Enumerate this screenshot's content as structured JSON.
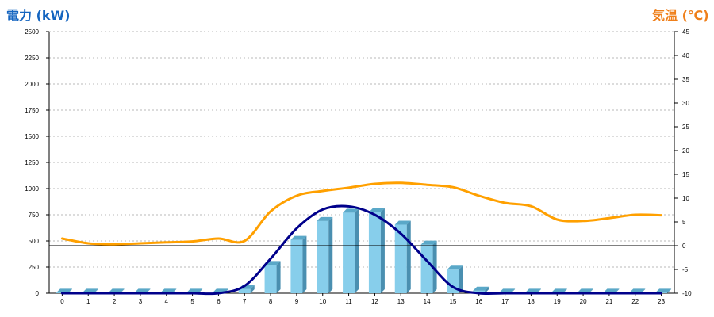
{
  "chart_data": {
    "type": "bar",
    "title": "",
    "left_axis": {
      "label": "電力 (kW)",
      "min": 0,
      "max": 2500,
      "ticks": [
        0,
        250,
        500,
        750,
        1000,
        1250,
        1500,
        1750,
        2000,
        2250,
        2500
      ]
    },
    "right_axis": {
      "label": "気温 (℃)",
      "min": -10,
      "max": 45,
      "ticks": [
        -10,
        -5,
        0,
        5,
        10,
        15,
        20,
        25,
        30,
        35,
        40,
        45
      ]
    },
    "categories": [
      "0",
      "1",
      "2",
      "3",
      "4",
      "5",
      "6",
      "7",
      "8",
      "9",
      "10",
      "11",
      "12",
      "13",
      "14",
      "15",
      "16",
      "17",
      "18",
      "19",
      "20",
      "21",
      "22",
      "23"
    ],
    "series": [
      {
        "kind": "bar",
        "axis": "left",
        "color": "#87ceeb",
        "values": [
          5,
          5,
          5,
          5,
          5,
          5,
          5,
          40,
          270,
          510,
          690,
          770,
          775,
          655,
          465,
          225,
          25,
          5,
          5,
          5,
          5,
          5,
          5,
          5
        ]
      },
      {
        "kind": "line",
        "axis": "left",
        "color": "#00008b",
        "values": [
          0,
          0,
          0,
          0,
          0,
          0,
          0,
          70,
          330,
          620,
          800,
          830,
          750,
          570,
          310,
          60,
          0,
          0,
          0,
          0,
          0,
          0,
          0,
          0
        ]
      },
      {
        "kind": "line",
        "axis": "right",
        "color": "#ffa000",
        "values": [
          1.5,
          0.5,
          0.3,
          0.5,
          0.7,
          0.9,
          1.5,
          1.0,
          7.2,
          10.5,
          11.5,
          12.2,
          13.0,
          13.2,
          12.8,
          12.3,
          10.5,
          9.0,
          8.3,
          5.5,
          5.2,
          5.8,
          6.5,
          6.4
        ]
      }
    ],
    "reference_line": {
      "axis": "right",
      "value": 0
    },
    "grid": "horizontal-dotted",
    "colors": {
      "left_title": "#1565c0",
      "right_title": "#ef7f1a"
    }
  }
}
